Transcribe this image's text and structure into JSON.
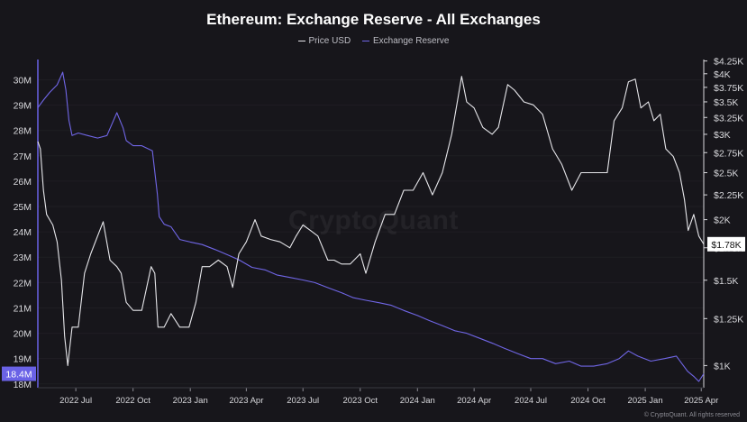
{
  "title": "Ethereum: Exchange Reserve - All Exchanges",
  "legend": [
    {
      "name": "Price USD",
      "color": "#e6e6ea"
    },
    {
      "name": "Exchange Reserve",
      "color": "#7066e6"
    }
  ],
  "watermark": "CryptoQuant",
  "credit": "© CryptoQuant. All rights reserved",
  "current_labels": {
    "left": "18.4M",
    "right": "$1.78K"
  },
  "chart_data": {
    "type": "line",
    "title": "Ethereum: Exchange Reserve - All Exchanges",
    "x_ticks": [
      "2022 Jul",
      "2022 Oct",
      "2023 Jan",
      "2023 Apr",
      "2023 Jul",
      "2023 Oct",
      "2024 Jan",
      "2024 Apr",
      "2024 Jul",
      "2024 Oct",
      "2025 Jan",
      "2025 Apr"
    ],
    "x_range": [
      "2022-05-01",
      "2025-04-05"
    ],
    "y_left": {
      "ticks": [
        "18M",
        "19M",
        "20M",
        "21M",
        "22M",
        "23M",
        "24M",
        "25M",
        "26M",
        "27M",
        "28M",
        "29M",
        "30M"
      ],
      "ylim": [
        17.85,
        30.8
      ]
    },
    "y_right": {
      "ticks": [
        "$1K",
        "$1.25K",
        "$1.5K",
        "$1.75K",
        "$2K",
        "$2.25K",
        "$2.5K",
        "$2.75K",
        "$3K",
        "$3.25K",
        "$3.5K",
        "$3.75K",
        "$4K",
        "$4.25K"
      ],
      "scale": "log",
      "ylim": [
        900,
        4280
      ]
    },
    "series": [
      {
        "name": "Exchange Reserve",
        "axis": "left",
        "color": "#7066e6",
        "x": [
          "2022-05-01",
          "2022-05-10",
          "2022-05-20",
          "2022-06-01",
          "2022-06-10",
          "2022-06-15",
          "2022-06-20",
          "2022-06-25",
          "2022-07-05",
          "2022-07-20",
          "2022-08-05",
          "2022-08-20",
          "2022-09-05",
          "2022-09-15",
          "2022-09-20",
          "2022-10-01",
          "2022-10-15",
          "2022-11-01",
          "2022-11-09",
          "2022-11-12",
          "2022-11-20",
          "2022-12-01",
          "2022-12-15",
          "2023-01-01",
          "2023-01-20",
          "2023-02-10",
          "2023-03-01",
          "2023-03-20",
          "2023-04-10",
          "2023-05-01",
          "2023-05-20",
          "2023-06-10",
          "2023-07-01",
          "2023-07-20",
          "2023-08-10",
          "2023-09-01",
          "2023-09-20",
          "2023-10-10",
          "2023-11-01",
          "2023-11-20",
          "2023-12-10",
          "2024-01-01",
          "2024-01-20",
          "2024-02-10",
          "2024-03-01",
          "2024-03-20",
          "2024-04-10",
          "2024-05-01",
          "2024-05-20",
          "2024-06-10",
          "2024-07-01",
          "2024-07-20",
          "2024-08-10",
          "2024-09-01",
          "2024-09-20",
          "2024-10-10",
          "2024-11-01",
          "2024-11-20",
          "2024-12-05",
          "2024-12-20",
          "2025-01-10",
          "2025-02-01",
          "2025-02-20",
          "2025-03-01",
          "2025-03-10",
          "2025-03-20",
          "2025-03-28",
          "2025-04-05"
        ],
        "values": [
          28.9,
          29.2,
          29.5,
          29.8,
          30.3,
          29.6,
          28.4,
          27.8,
          27.9,
          27.8,
          27.7,
          27.8,
          28.7,
          28.1,
          27.6,
          27.4,
          27.4,
          27.2,
          25.5,
          24.6,
          24.3,
          24.2,
          23.7,
          23.6,
          23.5,
          23.3,
          23.1,
          22.9,
          22.6,
          22.5,
          22.3,
          22.2,
          22.1,
          22.0,
          21.8,
          21.6,
          21.4,
          21.3,
          21.2,
          21.1,
          20.9,
          20.7,
          20.5,
          20.3,
          20.1,
          20.0,
          19.8,
          19.6,
          19.4,
          19.2,
          19.0,
          19.0,
          18.8,
          18.9,
          18.7,
          18.7,
          18.8,
          19.0,
          19.3,
          19.1,
          18.9,
          19.0,
          19.1,
          18.8,
          18.5,
          18.3,
          18.1,
          18.4
        ]
      },
      {
        "name": "Price USD",
        "axis": "right",
        "color": "#e6e6ea",
        "x": [
          "2022-05-01",
          "2022-05-05",
          "2022-05-10",
          "2022-05-15",
          "2022-05-20",
          "2022-05-25",
          "2022-06-01",
          "2022-06-08",
          "2022-06-13",
          "2022-06-18",
          "2022-06-25",
          "2022-07-05",
          "2022-07-15",
          "2022-07-25",
          "2022-08-05",
          "2022-08-14",
          "2022-08-25",
          "2022-09-05",
          "2022-09-12",
          "2022-09-20",
          "2022-10-01",
          "2022-10-15",
          "2022-10-30",
          "2022-11-05",
          "2022-11-10",
          "2022-11-20",
          "2022-12-01",
          "2022-12-15",
          "2022-12-30",
          "2023-01-10",
          "2023-01-20",
          "2023-02-01",
          "2023-02-15",
          "2023-03-01",
          "2023-03-10",
          "2023-03-20",
          "2023-04-01",
          "2023-04-15",
          "2023-04-25",
          "2023-05-10",
          "2023-05-25",
          "2023-06-10",
          "2023-06-20",
          "2023-07-01",
          "2023-07-13",
          "2023-07-25",
          "2023-08-10",
          "2023-08-20",
          "2023-09-01",
          "2023-09-15",
          "2023-10-01",
          "2023-10-10",
          "2023-10-25",
          "2023-11-10",
          "2023-11-25",
          "2023-12-10",
          "2023-12-25",
          "2024-01-10",
          "2024-01-25",
          "2024-02-10",
          "2024-02-25",
          "2024-03-05",
          "2024-03-12",
          "2024-03-20",
          "2024-04-01",
          "2024-04-15",
          "2024-04-30",
          "2024-05-10",
          "2024-05-25",
          "2024-06-05",
          "2024-06-20",
          "2024-07-05",
          "2024-07-20",
          "2024-08-05",
          "2024-08-20",
          "2024-09-05",
          "2024-09-20",
          "2024-10-01",
          "2024-10-15",
          "2024-11-01",
          "2024-11-12",
          "2024-11-25",
          "2024-12-05",
          "2024-12-16",
          "2024-12-25",
          "2025-01-06",
          "2025-01-15",
          "2025-01-25",
          "2025-02-03",
          "2025-02-15",
          "2025-02-25",
          "2025-03-05",
          "2025-03-11",
          "2025-03-20",
          "2025-03-28",
          "2025-04-05"
        ],
        "values": [
          2900,
          2800,
          2300,
          2050,
          2000,
          1950,
          1800,
          1500,
          1150,
          1000,
          1200,
          1200,
          1550,
          1700,
          1850,
          1980,
          1650,
          1600,
          1550,
          1350,
          1300,
          1300,
          1600,
          1550,
          1200,
          1200,
          1280,
          1200,
          1200,
          1350,
          1600,
          1600,
          1650,
          1600,
          1450,
          1700,
          1800,
          2000,
          1850,
          1820,
          1800,
          1750,
          1850,
          1950,
          1900,
          1850,
          1650,
          1650,
          1620,
          1620,
          1700,
          1550,
          1800,
          2050,
          2050,
          2300,
          2300,
          2500,
          2250,
          2500,
          3000,
          3500,
          3950,
          3500,
          3400,
          3100,
          3000,
          3100,
          3800,
          3700,
          3500,
          3450,
          3300,
          2800,
          2600,
          2300,
          2500,
          2500,
          2500,
          2500,
          3200,
          3400,
          3850,
          3900,
          3400,
          3500,
          3200,
          3300,
          2800,
          2700,
          2500,
          2200,
          1900,
          2050,
          1850,
          1780
        ]
      }
    ],
    "grid": true,
    "legend_position": "top-center"
  }
}
